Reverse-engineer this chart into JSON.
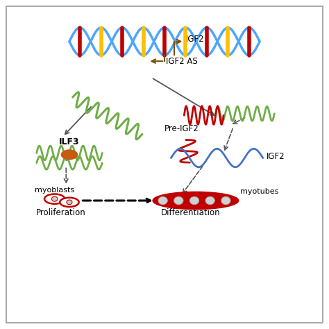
{
  "background_color": "#ffffff",
  "border_color": "#aaaaaa",
  "dna_color_main": "#4da6ff",
  "dna_color_bar1": "#c00000",
  "dna_color_bar2": "#ffc000",
  "rna_green": "#70ad47",
  "rna_red": "#c00000",
  "rna_blue": "#4472c4",
  "ilf3_color": "#c55a11",
  "myoblast_edge": "#c00000",
  "mytube_fill": "#c00000",
  "arrow_brown": "#7f4f00",
  "arrow_dark": "#404040",
  "label_igf2_top": "IGF2",
  "label_igf2as": "IGF2 AS",
  "label_preignf2": "Pre-IGF2",
  "label_igf2_wave": "IGF2",
  "label_ilf3": "ILF3",
  "label_myoblasts": "myoblasts",
  "label_proliferation": "Proliferation",
  "label_differentiation": "Differentiation",
  "label_myotubes": "myotubes"
}
